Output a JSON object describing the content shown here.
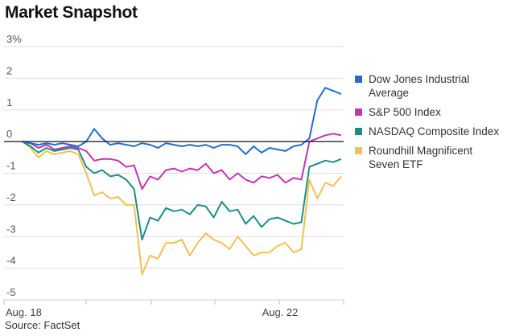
{
  "title": "Market Snapshot",
  "source": "Source: FactSet",
  "chart_data": {
    "type": "line",
    "title": "Market Snapshot",
    "y_unit": "%",
    "ylim": [
      -5,
      3
    ],
    "y_ticks": [
      3,
      2,
      1,
      0,
      -1,
      -2,
      -3,
      -4,
      -5
    ],
    "y_tick_labels": [
      "3%",
      "2",
      "1",
      "0",
      "-1",
      "-2",
      "-3",
      "-4",
      "-5"
    ],
    "x_tick_labels": [
      "Aug. 18",
      "Aug. 22"
    ],
    "grid": true,
    "legend_position": "right",
    "baseline": 0,
    "x": [
      0,
      0.25,
      0.5,
      0.75,
      1,
      1.25,
      1.5,
      1.75,
      2,
      2.25,
      2.5,
      2.75,
      3,
      3.25,
      3.5,
      3.75,
      4,
      4.25,
      4.5,
      4.75,
      5,
      5.25,
      5.5,
      5.75,
      6,
      6.25,
      6.5,
      6.75,
      7,
      7.25,
      7.5,
      7.75,
      8,
      8.25,
      8.5,
      8.75,
      9,
      9.25,
      9.5,
      9.75,
      10
    ],
    "series": [
      {
        "name": "Dow Jones Industrial Average",
        "color": "#1f6fd1",
        "values": [
          0.0,
          -0.05,
          -0.1,
          -0.05,
          -0.1,
          -0.05,
          -0.1,
          -0.15,
          0.0,
          0.4,
          0.1,
          -0.1,
          -0.05,
          -0.1,
          -0.15,
          -0.05,
          -0.1,
          -0.2,
          -0.05,
          -0.1,
          -0.15,
          -0.1,
          -0.15,
          -0.1,
          -0.2,
          -0.1,
          -0.1,
          -0.15,
          -0.4,
          -0.15,
          -0.35,
          -0.2,
          -0.25,
          -0.3,
          -0.15,
          -0.1,
          0.1,
          1.3,
          1.7,
          1.6,
          1.5
        ]
      },
      {
        "name": "S&P 500 Index",
        "color": "#c434b4",
        "values": [
          0.0,
          -0.05,
          -0.2,
          -0.1,
          -0.25,
          -0.2,
          -0.15,
          -0.2,
          -0.3,
          -0.6,
          -0.55,
          -0.55,
          -0.6,
          -0.8,
          -0.75,
          -1.5,
          -1.1,
          -1.2,
          -0.9,
          -0.85,
          -0.95,
          -0.85,
          -0.9,
          -0.7,
          -1.0,
          -0.9,
          -1.2,
          -1.0,
          -1.2,
          -1.3,
          -1.1,
          -1.15,
          -1.05,
          -1.3,
          -1.15,
          -1.2,
          0.0,
          0.1,
          0.2,
          0.25,
          0.2
        ]
      },
      {
        "name": "NASDAQ Composite Index",
        "color": "#1a8e87",
        "values": [
          0.0,
          -0.15,
          -0.35,
          -0.2,
          -0.3,
          -0.25,
          -0.2,
          -0.25,
          -0.8,
          -1.0,
          -0.9,
          -1.1,
          -1.05,
          -1.2,
          -1.5,
          -3.1,
          -2.4,
          -2.5,
          -2.1,
          -2.2,
          -2.15,
          -2.3,
          -2.0,
          -2.05,
          -2.4,
          -1.9,
          -2.2,
          -2.15,
          -2.6,
          -2.35,
          -2.7,
          -2.45,
          -2.4,
          -2.5,
          -2.6,
          -2.55,
          -0.8,
          -0.7,
          -0.6,
          -0.65,
          -0.55
        ]
      },
      {
        "name": "Roundhill Magnificent Seven ETF",
        "color": "#f2c14e",
        "values": [
          0.0,
          -0.2,
          -0.5,
          -0.3,
          -0.4,
          -0.35,
          -0.3,
          -0.4,
          -1.0,
          -1.7,
          -1.6,
          -1.8,
          -1.75,
          -2.0,
          -2.0,
          -4.2,
          -3.6,
          -3.7,
          -3.2,
          -3.2,
          -3.1,
          -3.6,
          -3.2,
          -2.9,
          -3.1,
          -3.2,
          -3.4,
          -3.0,
          -3.3,
          -3.6,
          -3.5,
          -3.5,
          -3.3,
          -3.2,
          -3.5,
          -3.4,
          -1.2,
          -1.8,
          -1.3,
          -1.4,
          -1.1
        ]
      }
    ]
  }
}
